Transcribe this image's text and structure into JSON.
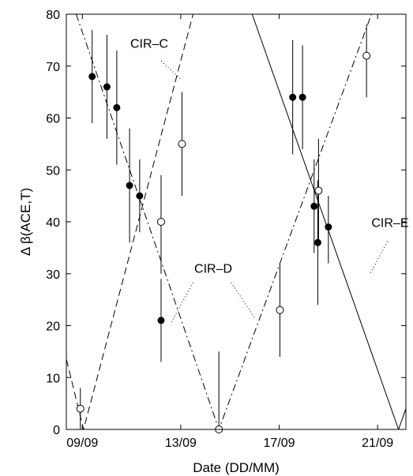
{
  "chart_data": {
    "type": "scatter",
    "title": "",
    "xlabel": "Date (DD/MM)",
    "ylabel": "Δ β(ACE,T)",
    "x_units": "days in September",
    "xlim": [
      8.35,
      22.15
    ],
    "ylim": [
      0,
      80
    ],
    "x_ticks": [
      {
        "value": 9,
        "label": "09/09"
      },
      {
        "value": 13,
        "label": "13/09"
      },
      {
        "value": 17,
        "label": "17/09"
      },
      {
        "value": 21,
        "label": "21/09"
      }
    ],
    "y_ticks": [
      {
        "value": 0,
        "label": "0"
      },
      {
        "value": 10,
        "label": "10"
      },
      {
        "value": 20,
        "label": "20"
      },
      {
        "value": 30,
        "label": "30"
      },
      {
        "value": 40,
        "label": "40"
      },
      {
        "value": 50,
        "label": "50"
      },
      {
        "value": 60,
        "label": "60"
      },
      {
        "value": 70,
        "label": "70"
      },
      {
        "value": 80,
        "label": "80"
      }
    ],
    "grid": false,
    "series": [
      {
        "marker": "filled-circle",
        "points": [
          {
            "x": 9.4,
            "y": 68,
            "ylow": 59,
            "yhigh": 77
          },
          {
            "x": 10.0,
            "y": 66,
            "ylow": 56,
            "yhigh": 76
          },
          {
            "x": 10.4,
            "y": 62,
            "ylow": 51,
            "yhigh": 73
          },
          {
            "x": 10.92,
            "y": 47,
            "ylow": 36,
            "yhigh": 58
          },
          {
            "x": 11.33,
            "y": 45,
            "ylow": 38,
            "yhigh": 52
          },
          {
            "x": 12.2,
            "y": 21,
            "ylow": 13,
            "yhigh": 29
          },
          {
            "x": 17.55,
            "y": 64,
            "ylow": 53,
            "yhigh": 75
          },
          {
            "x": 17.95,
            "y": 64,
            "ylow": 54,
            "yhigh": 74
          },
          {
            "x": 18.42,
            "y": 43,
            "ylow": 34,
            "yhigh": 52
          },
          {
            "x": 18.57,
            "y": 36,
            "ylow": 24,
            "yhigh": 48
          },
          {
            "x": 19.0,
            "y": 39,
            "ylow": 32,
            "yhigh": 45
          }
        ]
      },
      {
        "marker": "open-circle",
        "points": [
          {
            "x": 8.92,
            "y": 4,
            "ylow": 0,
            "yhigh": 8
          },
          {
            "x": 12.2,
            "y": 40,
            "ylow": 30,
            "yhigh": 49
          },
          {
            "x": 13.05,
            "y": 55,
            "ylow": 45,
            "yhigh": 65
          },
          {
            "x": 14.55,
            "y": 0,
            "ylow": 0,
            "yhigh": 15
          },
          {
            "x": 17.03,
            "y": 23,
            "ylow": 14,
            "yhigh": 32
          },
          {
            "x": 18.6,
            "y": 46,
            "ylow": 36,
            "yhigh": 56
          },
          {
            "x": 20.55,
            "y": 72,
            "ylow": 64,
            "yhigh": 78
          }
        ]
      }
    ],
    "lines": [
      {
        "style": "dashed",
        "points": [
          [
            8.25,
            15.5
          ],
          [
            9.05,
            0
          ],
          [
            13.5,
            80
          ]
        ]
      },
      {
        "style": "dashdot",
        "points": [
          [
            8.75,
            80
          ],
          [
            14.55,
            0
          ],
          [
            20.75,
            80
          ]
        ]
      },
      {
        "style": "solid",
        "points": [
          [
            15.9,
            80
          ],
          [
            21.85,
            0
          ],
          [
            22.15,
            4
          ]
        ]
      }
    ],
    "annotations": [
      {
        "text": "CIR–C",
        "x": 10.95,
        "y": 73.5,
        "leader": [
          [
            12.2,
            71
          ],
          [
            13.0,
            67.5
          ]
        ]
      },
      {
        "text": "CIR–D",
        "x": 13.55,
        "y": 30.2,
        "leader_left": [
          [
            13.5,
            28.3
          ],
          [
            12.6,
            20.5
          ]
        ],
        "leader_right": [
          [
            15.05,
            28.3
          ],
          [
            16.05,
            21.2
          ]
        ]
      },
      {
        "text": "CIR–E",
        "x": 20.75,
        "y": 39.0,
        "leader": [
          [
            21.4,
            36.2
          ],
          [
            20.7,
            30.0
          ]
        ]
      }
    ]
  }
}
